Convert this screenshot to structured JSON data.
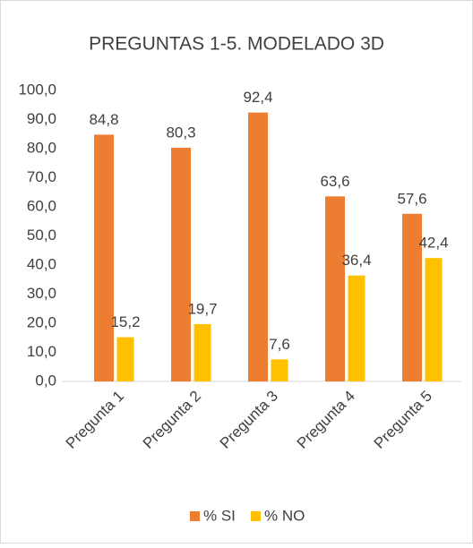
{
  "chart_data": {
    "type": "bar",
    "title": "PREGUNTAS 1-5. MODELADO 3D",
    "categories": [
      "Pregunta 1",
      "Pregunta 2",
      "Pregunta 3",
      "Pregunta 4",
      "Pregunta 5"
    ],
    "series": [
      {
        "name": "% SI",
        "color": "#ed7d31",
        "values": [
          84.8,
          80.3,
          92.4,
          63.6,
          57.6
        ],
        "value_labels": [
          "84,8",
          "80,3",
          "92,4",
          "63,6",
          "57,6"
        ]
      },
      {
        "name": "% NO",
        "color": "#ffc000",
        "values": [
          15.2,
          19.7,
          7.6,
          36.4,
          42.4
        ],
        "value_labels": [
          "15,2",
          "19,7",
          "7,6",
          "36,4",
          "42,4"
        ]
      }
    ],
    "ylim": [
      0,
      100
    ],
    "yticks": [
      {
        "value": 0,
        "label": "0,0"
      },
      {
        "value": 10,
        "label": "10,0"
      },
      {
        "value": 20,
        "label": "20,0"
      },
      {
        "value": 30,
        "label": "30,0"
      },
      {
        "value": 40,
        "label": "40,0"
      },
      {
        "value": 50,
        "label": "50,0"
      },
      {
        "value": 60,
        "label": "60,0"
      },
      {
        "value": 70,
        "label": "70,0"
      },
      {
        "value": 80,
        "label": "80,0"
      },
      {
        "value": 90,
        "label": "90,0"
      },
      {
        "value": 100,
        "label": "100,0"
      }
    ],
    "grid": false,
    "legend": "bottom"
  }
}
